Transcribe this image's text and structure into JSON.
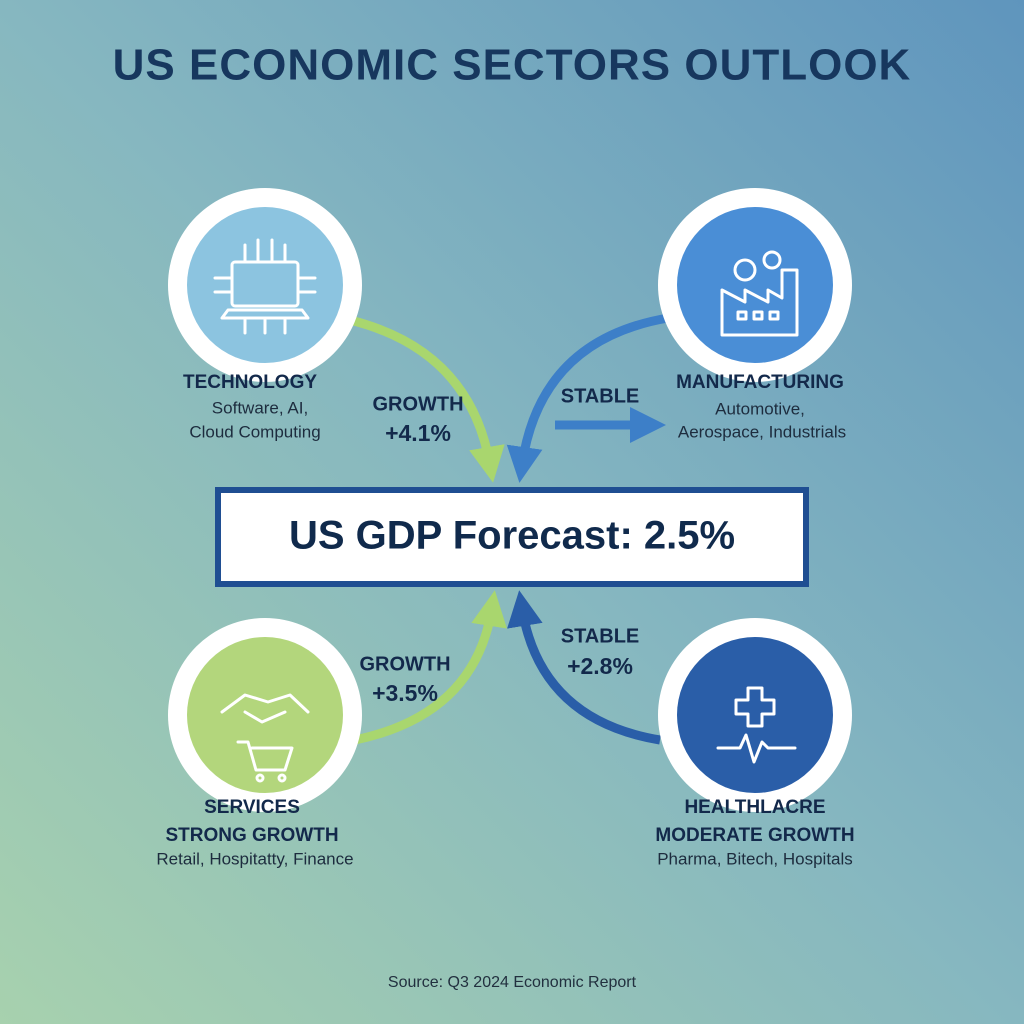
{
  "title": "US ECONOMIC SECTORS OUTLOOK",
  "center": "US GDP Forecast: 2.5%",
  "sectors": [
    {
      "name": "TECHNOLOGY",
      "lines": [
        "Software, AI,",
        "Cloud Computing"
      ],
      "arrow": [
        "GROWTH",
        "+4.1%"
      ]
    },
    {
      "name": "MANUFACTURING",
      "lines": [
        "Automotive,",
        "Aerospace, Industrials"
      ],
      "arrow": [
        "STABLE"
      ]
    },
    {
      "name": "SERVICES",
      "lines": [
        "STRONG GROWTH",
        "Retail, Hospitatty, Finance"
      ],
      "arrow": [
        "GROWTH",
        "+3.5%"
      ]
    },
    {
      "name": "HEALTHLACRE",
      "lines": [
        "MODERATE GROWTH",
        "Pharma, Bitech, Hospitals"
      ],
      "arrow": [
        "STABLE",
        "+2.8%"
      ]
    }
  ],
  "source": "Source: Q3 2024 Economic Report"
}
